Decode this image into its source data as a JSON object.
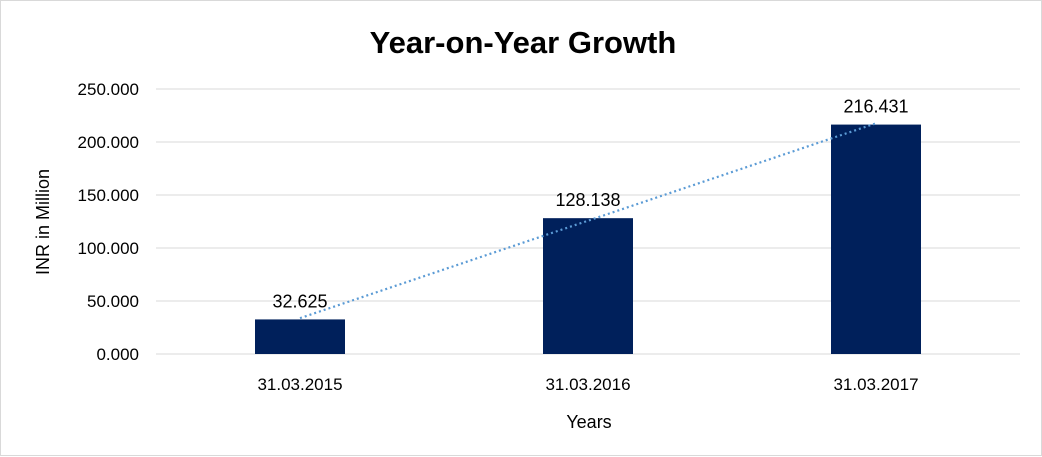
{
  "chart_data": {
    "type": "bar",
    "title": "Year-on-Year Growth",
    "xlabel": "Years",
    "ylabel": "INR in Million",
    "categories": [
      "31.03.2015",
      "31.03.2016",
      "31.03.2017"
    ],
    "values": [
      32.625,
      128.138,
      216.431
    ],
    "value_labels": [
      "32.625",
      "128.138",
      "216.431"
    ],
    "ylim": [
      0,
      250
    ],
    "yticks": [
      0,
      50,
      100,
      150,
      200,
      250
    ],
    "ytick_labels": [
      "0.000",
      "50.000",
      "100.000",
      "150.000",
      "200.000",
      "250.000"
    ],
    "grid": "horizontal",
    "trendline": "linear",
    "colors": {
      "bar": "#00205b",
      "trendline": "#5b9bd5",
      "grid": "#d9d9d9"
    }
  }
}
